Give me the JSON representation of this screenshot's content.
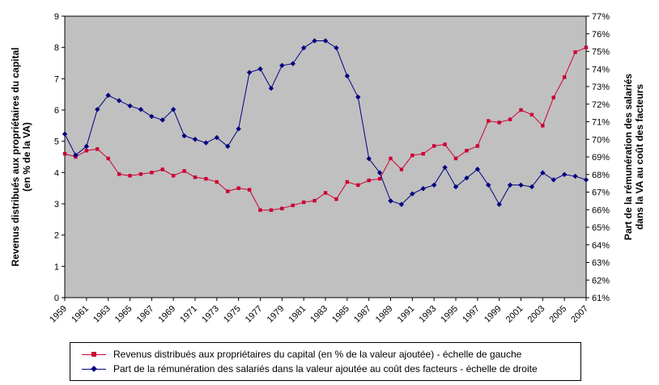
{
  "chart_data": {
    "type": "line",
    "title": "",
    "plot_bg": "#c0c0c0",
    "x": [
      1959,
      1960,
      1961,
      1962,
      1963,
      1964,
      1965,
      1966,
      1967,
      1968,
      1969,
      1970,
      1971,
      1972,
      1973,
      1974,
      1975,
      1976,
      1977,
      1978,
      1979,
      1980,
      1981,
      1982,
      1983,
      1984,
      1985,
      1986,
      1987,
      1988,
      1989,
      1990,
      1991,
      1992,
      1993,
      1994,
      1995,
      1996,
      1997,
      1998,
      1999,
      2000,
      2001,
      2002,
      2003,
      2004,
      2005,
      2006,
      2007
    ],
    "x_label_every": 2,
    "left_axis": {
      "label_line1": "Revenus distribués aux propriétaires du capital",
      "label_line2": "(en % de la VA)",
      "min": 0,
      "max": 9,
      "step": 1,
      "suffix": ""
    },
    "right_axis": {
      "label_line1": "Part de la rémunération des salariés",
      "label_line2": "dans la VA au coût des facteurs",
      "min": 61,
      "max": 77,
      "step": 1,
      "suffix": "%"
    },
    "series": [
      {
        "name": "Revenus distribués aux propriétaires du capital (en % de la valeur ajoutée) - échelle de gauche",
        "axis": "left",
        "color": "#cc0033",
        "marker": "square",
        "values": [
          4.6,
          4.5,
          4.7,
          4.75,
          4.45,
          3.95,
          3.9,
          3.95,
          4.0,
          4.1,
          3.9,
          4.05,
          3.85,
          3.8,
          3.7,
          3.4,
          3.5,
          3.45,
          2.8,
          2.8,
          2.85,
          2.95,
          3.05,
          3.1,
          3.35,
          3.15,
          3.7,
          3.6,
          3.75,
          3.8,
          4.45,
          4.1,
          4.55,
          4.6,
          4.85,
          4.9,
          4.45,
          4.7,
          4.85,
          5.65,
          5.6,
          5.7,
          6.0,
          5.85,
          5.5,
          6.4,
          7.05,
          7.85,
          8.0
        ]
      },
      {
        "name": "Part de la rémunération des salariés dans la valeur ajoutée au coût des facteurs - échelle de droite",
        "axis": "right",
        "color": "#000080",
        "marker": "diamond",
        "values": [
          70.3,
          69.1,
          69.6,
          71.7,
          72.5,
          72.2,
          71.9,
          71.7,
          71.3,
          71.1,
          71.7,
          70.2,
          70.0,
          69.8,
          70.1,
          69.6,
          70.6,
          73.8,
          74.0,
          72.9,
          74.2,
          74.3,
          75.2,
          75.6,
          75.6,
          75.2,
          73.6,
          72.4,
          68.9,
          68.1,
          66.5,
          66.3,
          66.9,
          67.2,
          67.4,
          68.4,
          67.3,
          67.8,
          68.3,
          67.4,
          66.3,
          67.4,
          67.4,
          67.3,
          68.1,
          67.7,
          68.0,
          67.9,
          67.7
        ]
      }
    ],
    "legend_position": "bottom",
    "grid": false
  }
}
